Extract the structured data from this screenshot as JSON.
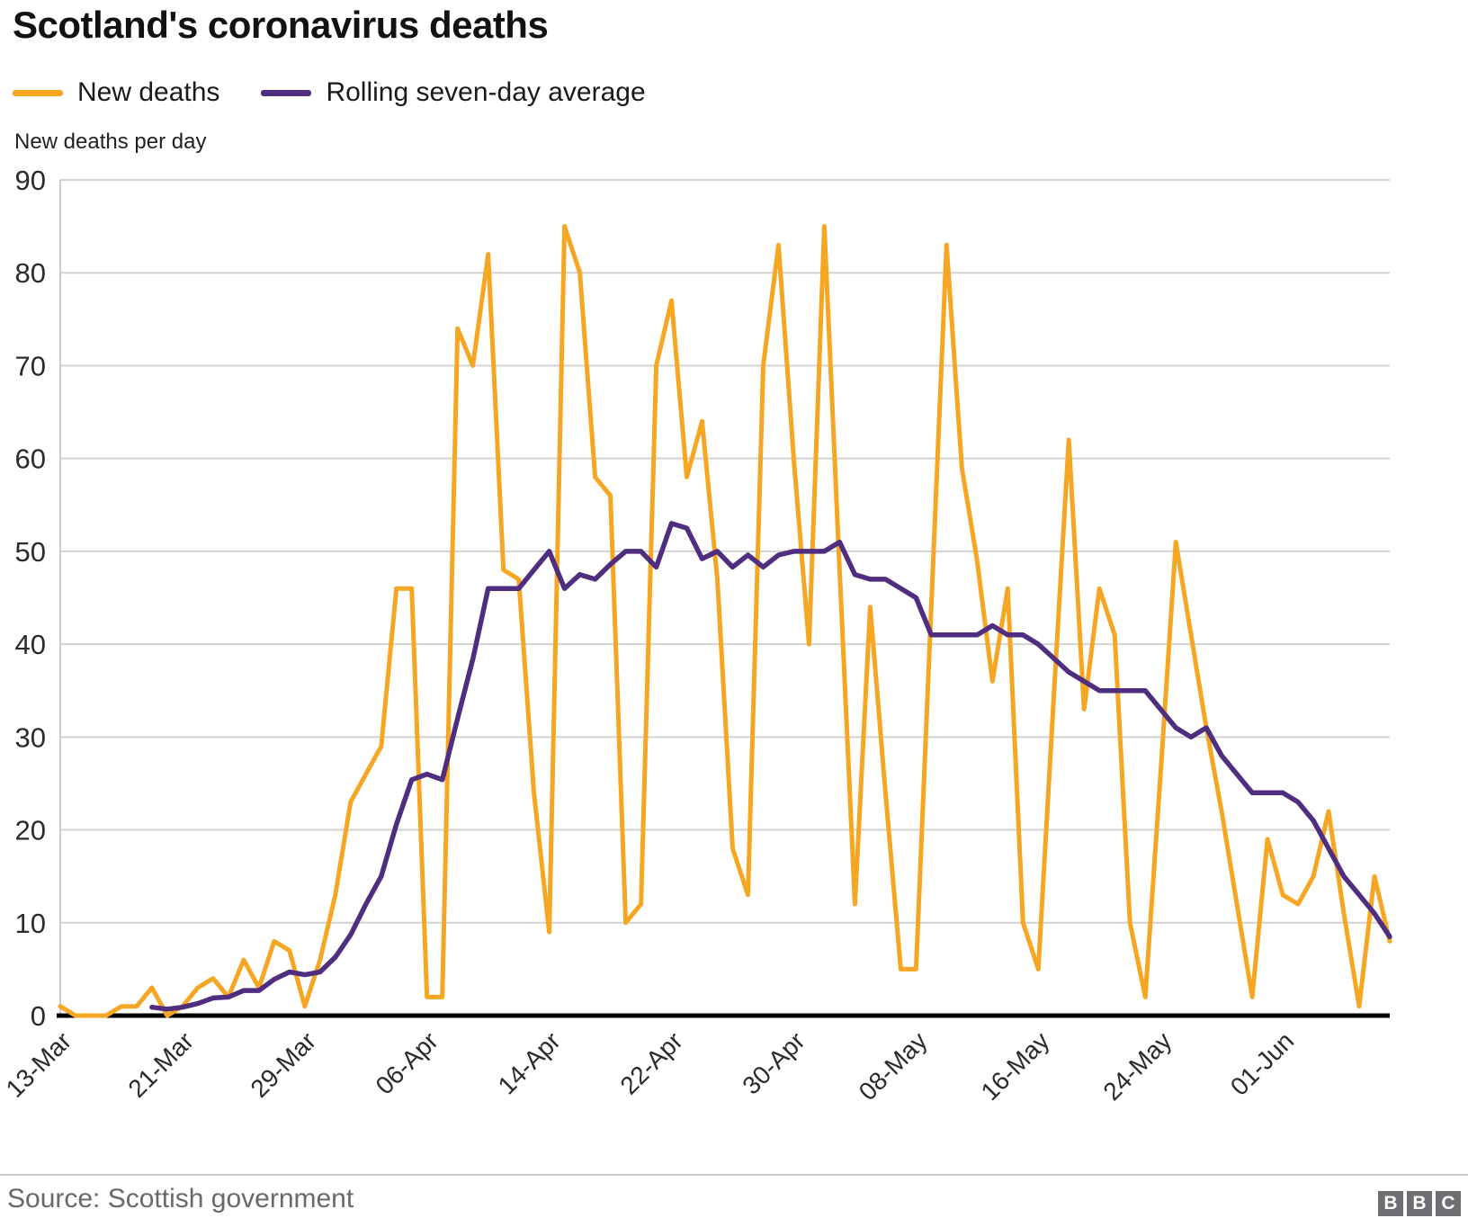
{
  "page": {
    "title": "Scotland's coronavirus deaths"
  },
  "legend": [
    {
      "label": "New deaths",
      "color": "#F5A623"
    },
    {
      "label": "Rolling seven-day average",
      "color": "#4F2D7F"
    }
  ],
  "footer": {
    "source": "Source: Scottish government",
    "logo_letters": [
      "B",
      "B",
      "C"
    ]
  },
  "chart_data": {
    "type": "line",
    "title": "Scotland's coronavirus deaths",
    "xlabel": "",
    "ylabel": "New deaths per day",
    "ylim": [
      0,
      90
    ],
    "yticks": [
      0,
      10,
      20,
      30,
      40,
      50,
      60,
      70,
      80,
      90
    ],
    "grid": "horizontal",
    "legend_position": "top-left",
    "start_date": "13-Mar",
    "end_date": "08-Jun",
    "x_tick_labels": [
      "13-Mar",
      "21-Mar",
      "29-Mar",
      "06-Apr",
      "14-Apr",
      "22-Apr",
      "30-Apr",
      "08-May",
      "16-May",
      "24-May",
      "01-Jun"
    ],
    "x_tick_indices": [
      0,
      8,
      16,
      24,
      32,
      40,
      48,
      56,
      64,
      72,
      80
    ],
    "series": [
      {
        "name": "New deaths",
        "color": "#F5A623",
        "start_index": 0,
        "values": [
          1,
          0,
          0,
          0,
          1,
          1,
          3,
          0,
          1,
          3,
          4,
          2,
          6,
          3,
          8,
          7,
          1,
          6,
          13,
          23,
          26,
          29,
          46,
          46,
          2,
          2,
          74,
          70,
          82,
          48,
          47,
          24,
          9,
          85,
          80,
          58,
          56,
          10,
          12,
          70,
          77,
          58,
          64,
          47,
          18,
          13,
          70,
          83,
          60,
          40,
          85,
          48,
          12,
          44,
          24,
          5,
          5,
          44,
          83,
          59,
          49,
          36,
          46,
          10,
          5,
          34,
          62,
          33,
          46,
          41,
          10,
          2,
          26,
          51,
          41,
          31,
          22,
          12,
          2,
          19,
          13,
          12,
          15,
          22,
          11,
          1,
          15,
          8
        ]
      },
      {
        "name": "Rolling seven-day average",
        "color": "#4F2D7F",
        "start_index": 6,
        "values": [
          0.9,
          0.7,
          0.9,
          1.3,
          1.9,
          2.0,
          2.7,
          2.7,
          3.9,
          4.7,
          4.4,
          4.7,
          6.3,
          8.7,
          12.0,
          15.0,
          20.6,
          25.4,
          26.0,
          25.4,
          32.0,
          38.4,
          46.0,
          46.0,
          46.0,
          48.0,
          50.0,
          46.0,
          47.5,
          47.0,
          48.6,
          50.0,
          50.0,
          48.3,
          53.0,
          52.5,
          49.2,
          50.0,
          48.3,
          49.6,
          48.3,
          49.6,
          50.0,
          50.0,
          50.0,
          51.0,
          47.5,
          47.0,
          47.0,
          46.0,
          45.0,
          41.0,
          41.0,
          41.0,
          41.0,
          42.0,
          41.0,
          41.0,
          40.0,
          38.5,
          37.0,
          36.0,
          35.0,
          35.0,
          35.0,
          35.0,
          33.0,
          31.0,
          30.0,
          31.0,
          28.0,
          26.0,
          24.0,
          24.0,
          24.0,
          23.0,
          21.0,
          18.0,
          15.0,
          13.0,
          11.0,
          8.5
        ]
      }
    ]
  }
}
